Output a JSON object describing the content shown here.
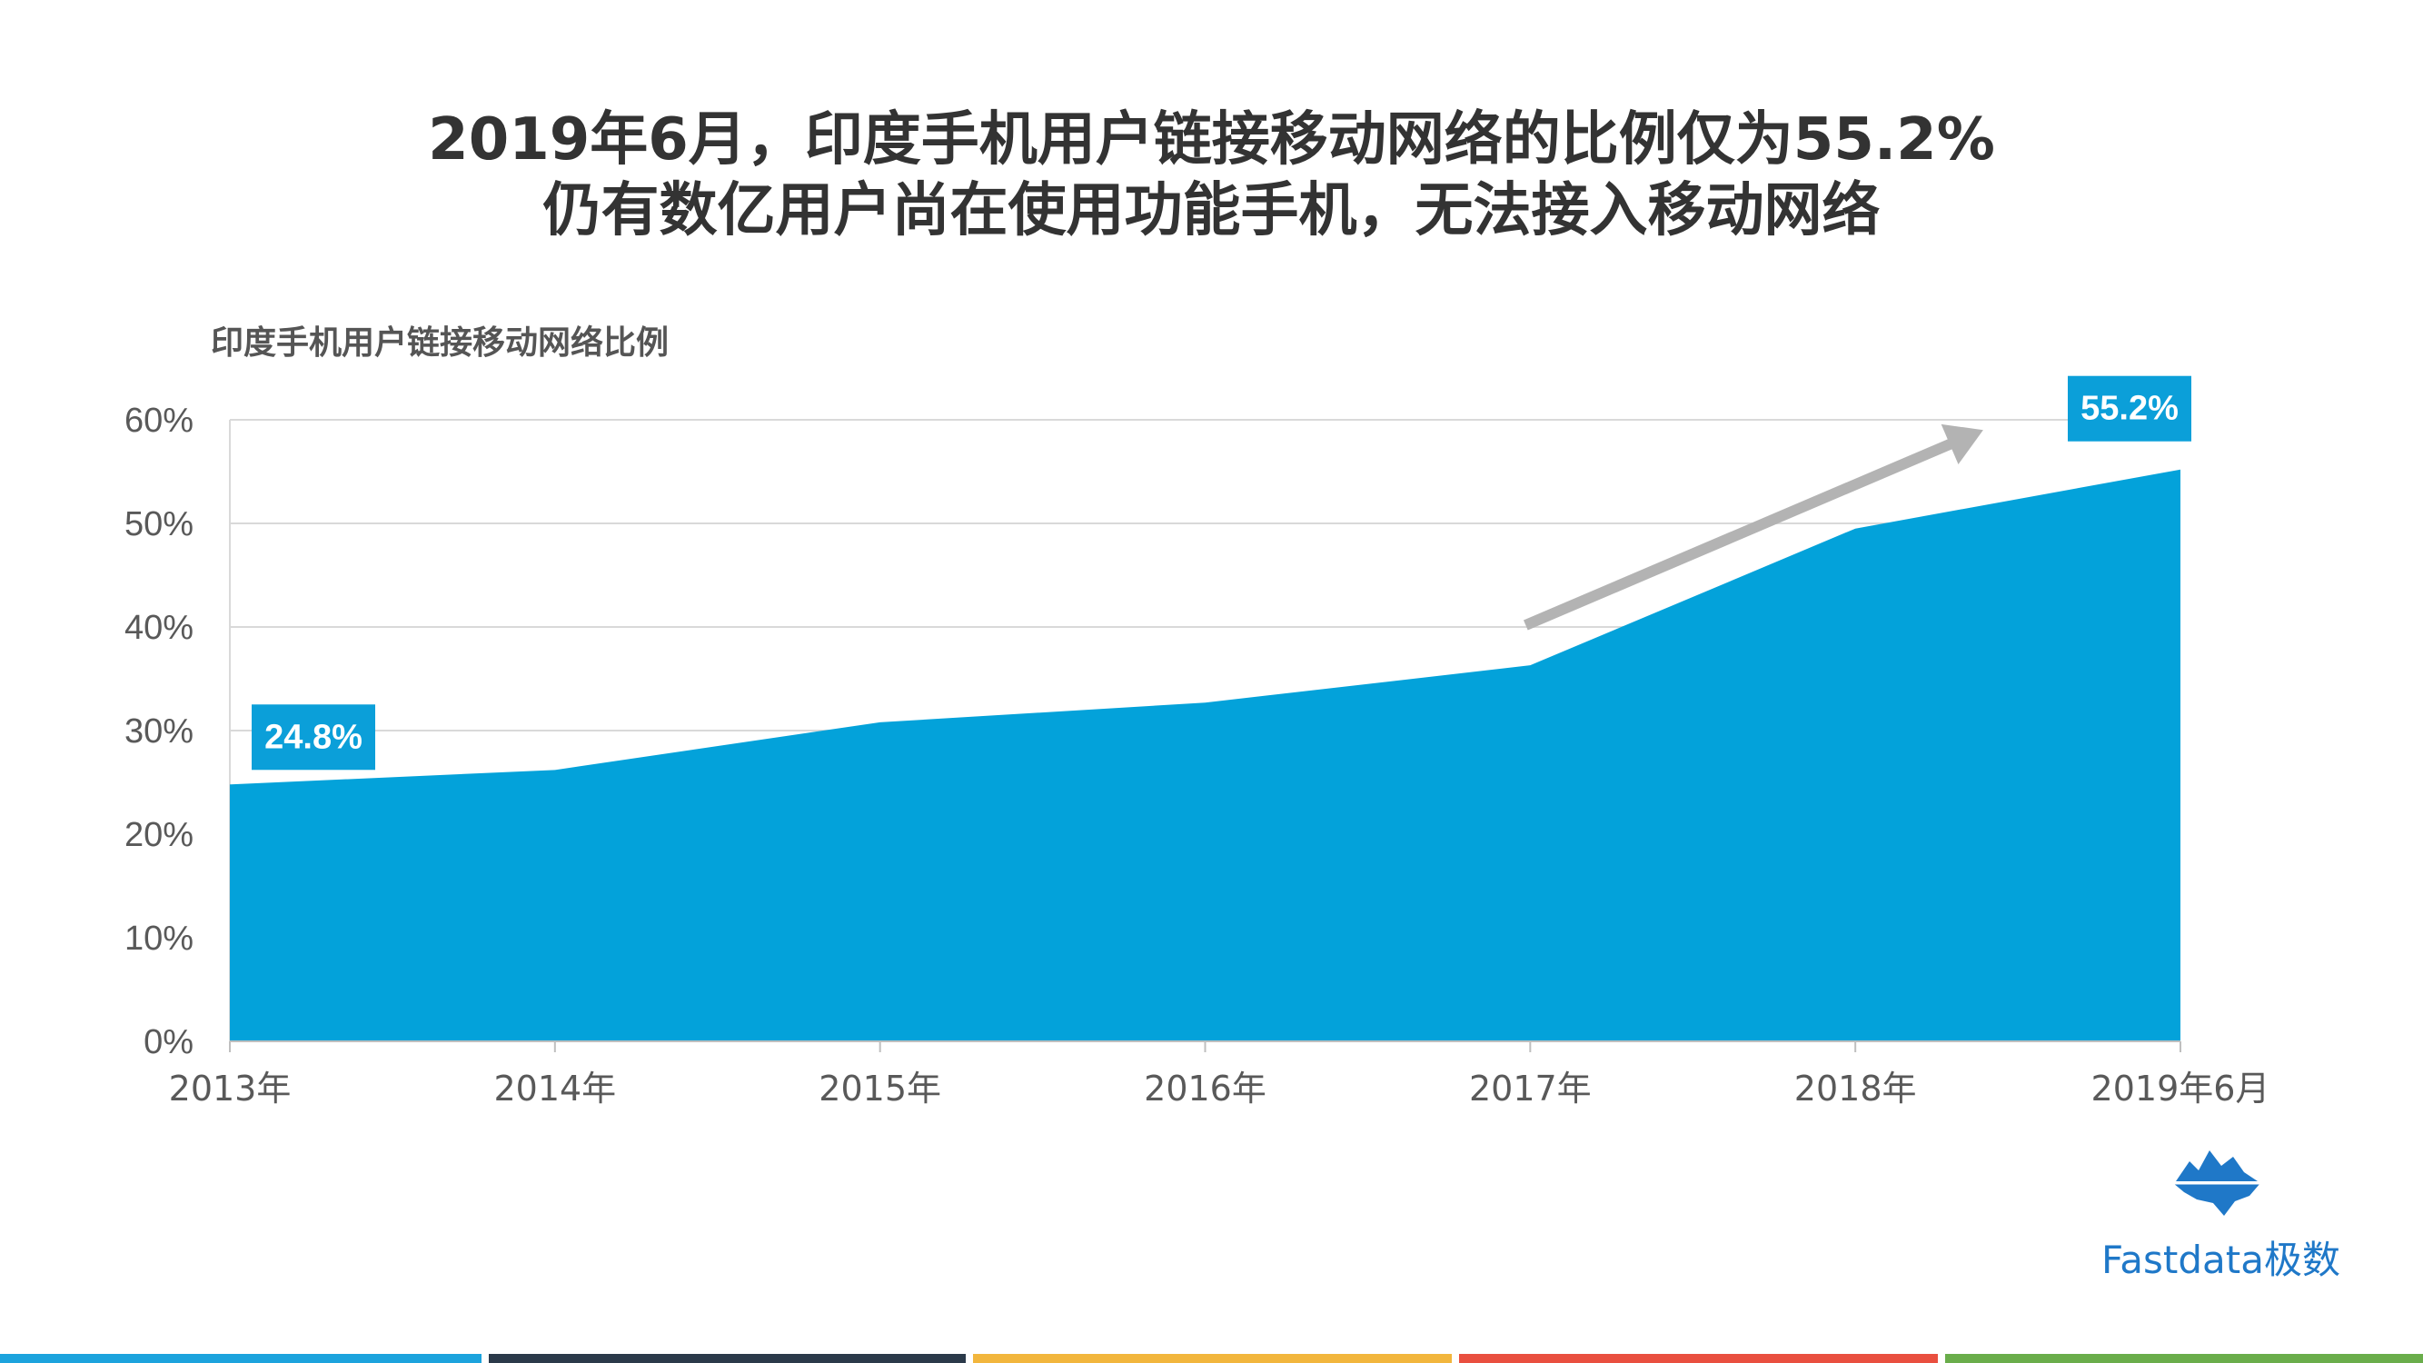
{
  "title": {
    "line1": "2019年6月，印度手机用户链接移动网络的比例仅为55.2%",
    "line2": "仍有数亿用户尚在使用功能手机，无法接入移动网络"
  },
  "logo": {
    "text": "Fastdata极数",
    "icon": "iceberg-icon"
  },
  "colors": {
    "area": "#03a2da",
    "label_bg": "#0b9fd9",
    "arrow": "#b3b3b3",
    "grid": "#d9d9d9",
    "stripes": [
      "#1ca3dd",
      "#2b3a4a",
      "#f2b63d",
      "#e94f3f",
      "#6aad4b"
    ]
  },
  "chart_data": {
    "type": "area",
    "title": "印度手机用户链接移动网络比例",
    "categories": [
      "2013年",
      "2014年",
      "2015年",
      "2016年",
      "2017年",
      "2018年",
      "2019年6月"
    ],
    "series": [
      {
        "values": [
          24.8,
          26.2,
          30.8,
          32.7,
          36.3,
          49.5,
          55.2
        ]
      }
    ],
    "ylim": [
      0,
      60
    ],
    "yticks": [
      0,
      10,
      20,
      30,
      40,
      50,
      60
    ],
    "ytick_labels": [
      "0%",
      "10%",
      "20%",
      "30%",
      "40%",
      "50%",
      "60%"
    ],
    "grid": true,
    "data_labels": [
      {
        "index": 0,
        "text": "24.8%"
      },
      {
        "index": 6,
        "text": "55.2%"
      }
    ],
    "annotation": {
      "type": "arrow",
      "direction": "up-right",
      "from_category": 4,
      "to_category": 5.4
    }
  }
}
